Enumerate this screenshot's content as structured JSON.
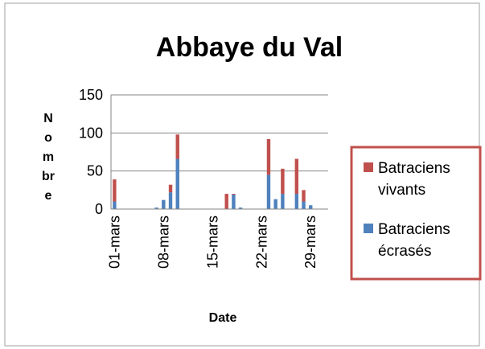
{
  "chart_data": {
    "type": "stacked_bar",
    "title": "Abbaye du Val",
    "y_label": "Nombre",
    "x_label": "Date",
    "categories": [
      "01-mars",
      null,
      null,
      null,
      null,
      null,
      null,
      "08-mars",
      null,
      null,
      null,
      null,
      null,
      null,
      "15-mars",
      null,
      null,
      null,
      null,
      null,
      null,
      "22-mars",
      null,
      null,
      null,
      null,
      null,
      null,
      "29-mars",
      null,
      null
    ],
    "series": [
      {
        "name": "Batraciens vivants",
        "color": "#c0504d",
        "values": [
          29,
          0,
          0,
          0,
          0,
          0,
          0,
          0,
          10,
          32,
          0,
          0,
          0,
          0,
          0,
          0,
          20,
          1,
          0,
          0,
          0,
          0,
          47,
          0,
          33,
          0,
          46,
          15,
          0,
          0,
          0
        ]
      },
      {
        "name": "Batraciens écrasés",
        "color": "#4f81bd",
        "values": [
          10,
          0,
          0,
          0,
          0,
          0,
          2,
          12,
          22,
          66,
          0,
          0,
          0,
          0,
          0,
          0,
          0,
          19,
          2,
          0,
          0,
          0,
          45,
          13,
          20,
          0,
          20,
          10,
          5,
          0,
          0
        ]
      }
    ],
    "ylim": [
      0,
      150
    ],
    "yticks": [
      0,
      50,
      100,
      150
    ],
    "grid": true,
    "legend": "right"
  }
}
